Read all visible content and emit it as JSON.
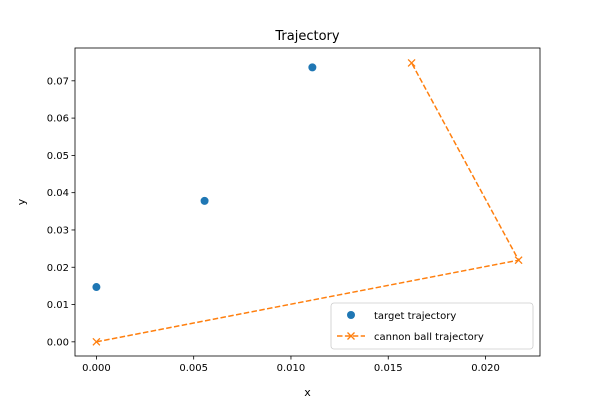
{
  "chart_data": {
    "type": "scatter",
    "title": "Trajectory",
    "xlabel": "x",
    "ylabel": "y",
    "xlim": [
      -0.0011,
      0.0228
    ],
    "ylim": [
      -0.0038,
      0.0788
    ],
    "x_ticks": [
      0.0,
      0.005,
      0.01,
      0.015,
      0.02
    ],
    "x_tick_labels": [
      "0.000",
      "0.005",
      "0.010",
      "0.015",
      "0.020"
    ],
    "y_ticks": [
      0.0,
      0.01,
      0.02,
      0.03,
      0.04,
      0.05,
      0.06,
      0.07
    ],
    "y_tick_labels": [
      "0.00",
      "0.01",
      "0.02",
      "0.03",
      "0.04",
      "0.05",
      "0.06",
      "0.07"
    ],
    "grid": false,
    "legend_position": "lower-right",
    "series": [
      {
        "name": "target trajectory",
        "style": "markers",
        "marker": "circle",
        "color": "#1f77b4",
        "points": [
          {
            "x": 0.0,
            "y": 0.0147
          },
          {
            "x": 0.00556,
            "y": 0.0378
          },
          {
            "x": 0.0111,
            "y": 0.0736
          }
        ]
      },
      {
        "name": "cannon ball trajectory",
        "style": "dashed-line-markers",
        "marker": "x",
        "color": "#ff7f0e",
        "points": [
          {
            "x": 0.0,
            "y": 0.0
          },
          {
            "x": 0.0217,
            "y": 0.0219
          },
          {
            "x": 0.0162,
            "y": 0.0748
          }
        ]
      }
    ]
  }
}
